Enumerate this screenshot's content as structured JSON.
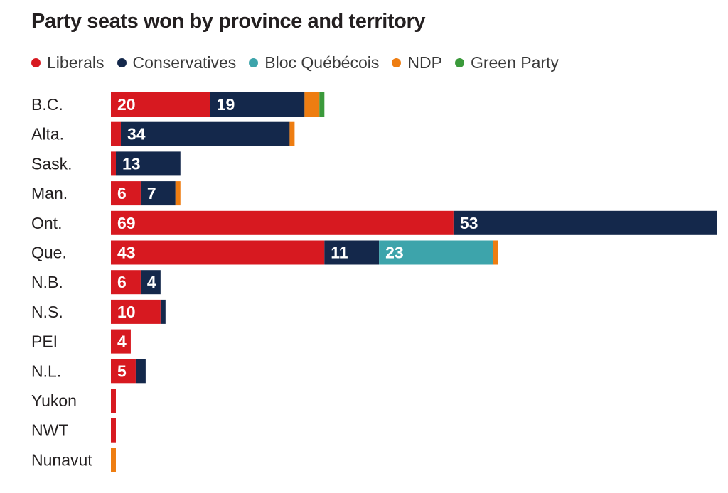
{
  "chart_data": {
    "type": "bar",
    "orientation": "horizontal",
    "stacked": true,
    "title": "Party seats won by province and territory",
    "categories": [
      "B.C.",
      "Alta.",
      "Sask.",
      "Man.",
      "Ont.",
      "Que.",
      "N.B.",
      "N.S.",
      "PEI",
      "N.L.",
      "Yukon",
      "NWT",
      "Nunavut"
    ],
    "series": [
      {
        "name": "Liberals",
        "color": "#d71920",
        "values": [
          20,
          2,
          1,
          6,
          69,
          43,
          6,
          10,
          4,
          5,
          1,
          1,
          0
        ]
      },
      {
        "name": "Conservatives",
        "color": "#14284b",
        "values": [
          19,
          34,
          13,
          7,
          53,
          11,
          4,
          1,
          0,
          2,
          0,
          0,
          0
        ]
      },
      {
        "name": "Bloc Québécois",
        "color": "#3da4ab",
        "values": [
          0,
          0,
          0,
          0,
          0,
          23,
          0,
          0,
          0,
          0,
          0,
          0,
          0
        ]
      },
      {
        "name": "NDP",
        "color": "#ee7d11",
        "values": [
          3,
          1,
          0,
          1,
          0,
          1,
          0,
          0,
          0,
          0,
          0,
          0,
          1
        ]
      },
      {
        "name": "Green Party",
        "color": "#3b9a3b",
        "values": [
          1,
          0,
          0,
          0,
          0,
          0,
          0,
          0,
          0,
          0,
          0,
          0,
          0
        ]
      }
    ],
    "data_labels": [
      [
        "20",
        "19",
        "",
        "",
        ""
      ],
      [
        "",
        "34",
        "",
        "",
        ""
      ],
      [
        "",
        "13",
        "",
        "",
        ""
      ],
      [
        "6",
        "7",
        "",
        "",
        ""
      ],
      [
        "69",
        "53",
        "",
        "",
        ""
      ],
      [
        "43",
        "11",
        "23",
        "",
        ""
      ],
      [
        "6",
        "4",
        "",
        "",
        ""
      ],
      [
        "10",
        "",
        "",
        "",
        ""
      ],
      [
        "4",
        "",
        "",
        "",
        ""
      ],
      [
        "5",
        "",
        "",
        "",
        ""
      ],
      [
        "",
        "",
        "",
        "",
        ""
      ],
      [
        "",
        "",
        "",
        "",
        ""
      ],
      [
        "",
        "",
        "",
        "",
        ""
      ]
    ],
    "xlim": [
      0,
      122
    ],
    "legend_position": "top-left",
    "grid": false
  }
}
